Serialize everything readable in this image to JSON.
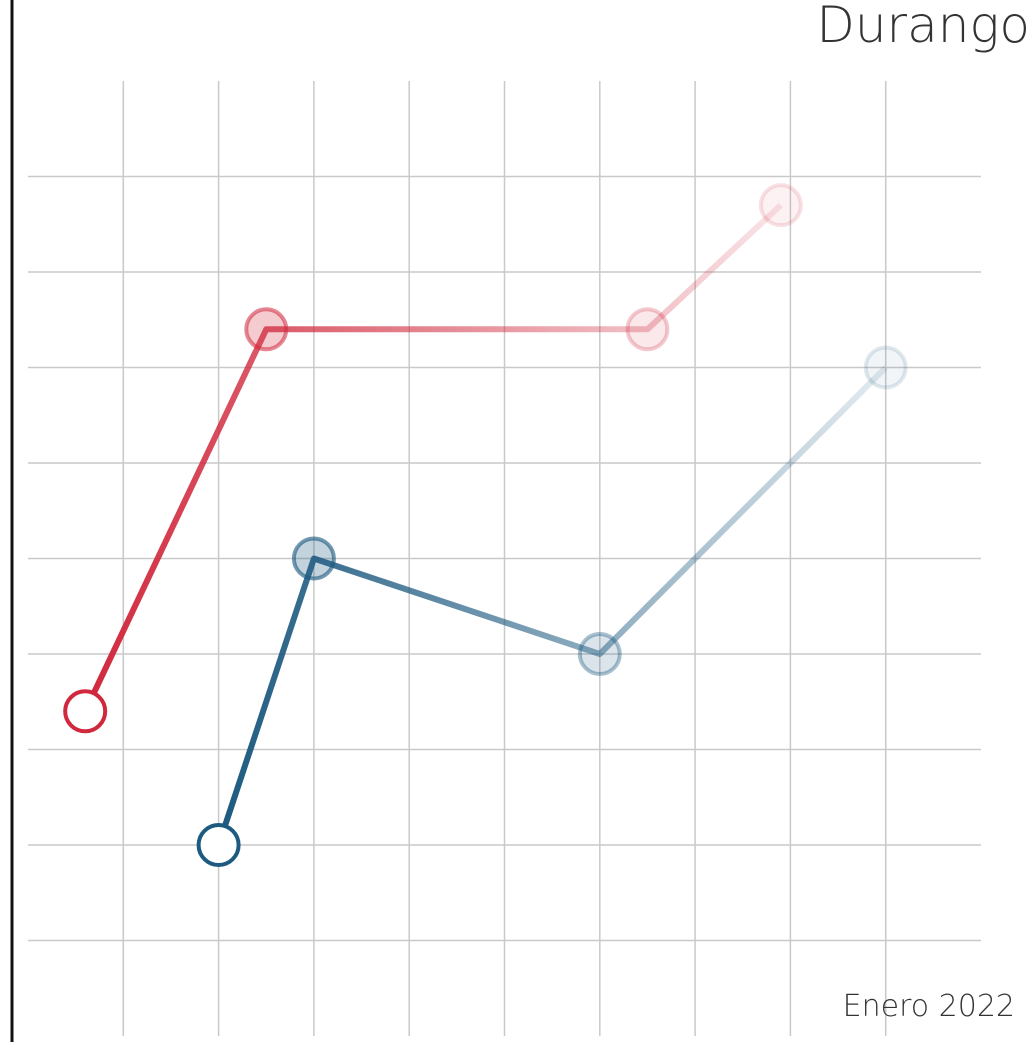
{
  "chart_data": {
    "type": "line",
    "title": "Durango",
    "subtitle": "Enero 2022",
    "xlim": [
      0,
      10
    ],
    "ylim": [
      0,
      10
    ],
    "xticks": [
      1,
      2,
      3,
      4,
      5,
      6,
      7,
      8,
      9
    ],
    "yticks": [
      1,
      2,
      3,
      4,
      5,
      6,
      7,
      8,
      9
    ],
    "grid": true,
    "series": [
      {
        "color": "#d0283c",
        "x": [
          0.6,
          2.5,
          6.5,
          7.9
        ],
        "values": [
          3.4,
          7.4,
          7.4,
          8.7
        ]
      },
      {
        "color": "#1d5a80",
        "x": [
          2.0,
          3.0,
          6.0,
          9.0
        ],
        "values": [
          2.0,
          5.0,
          4.0,
          7.0
        ]
      }
    ]
  }
}
